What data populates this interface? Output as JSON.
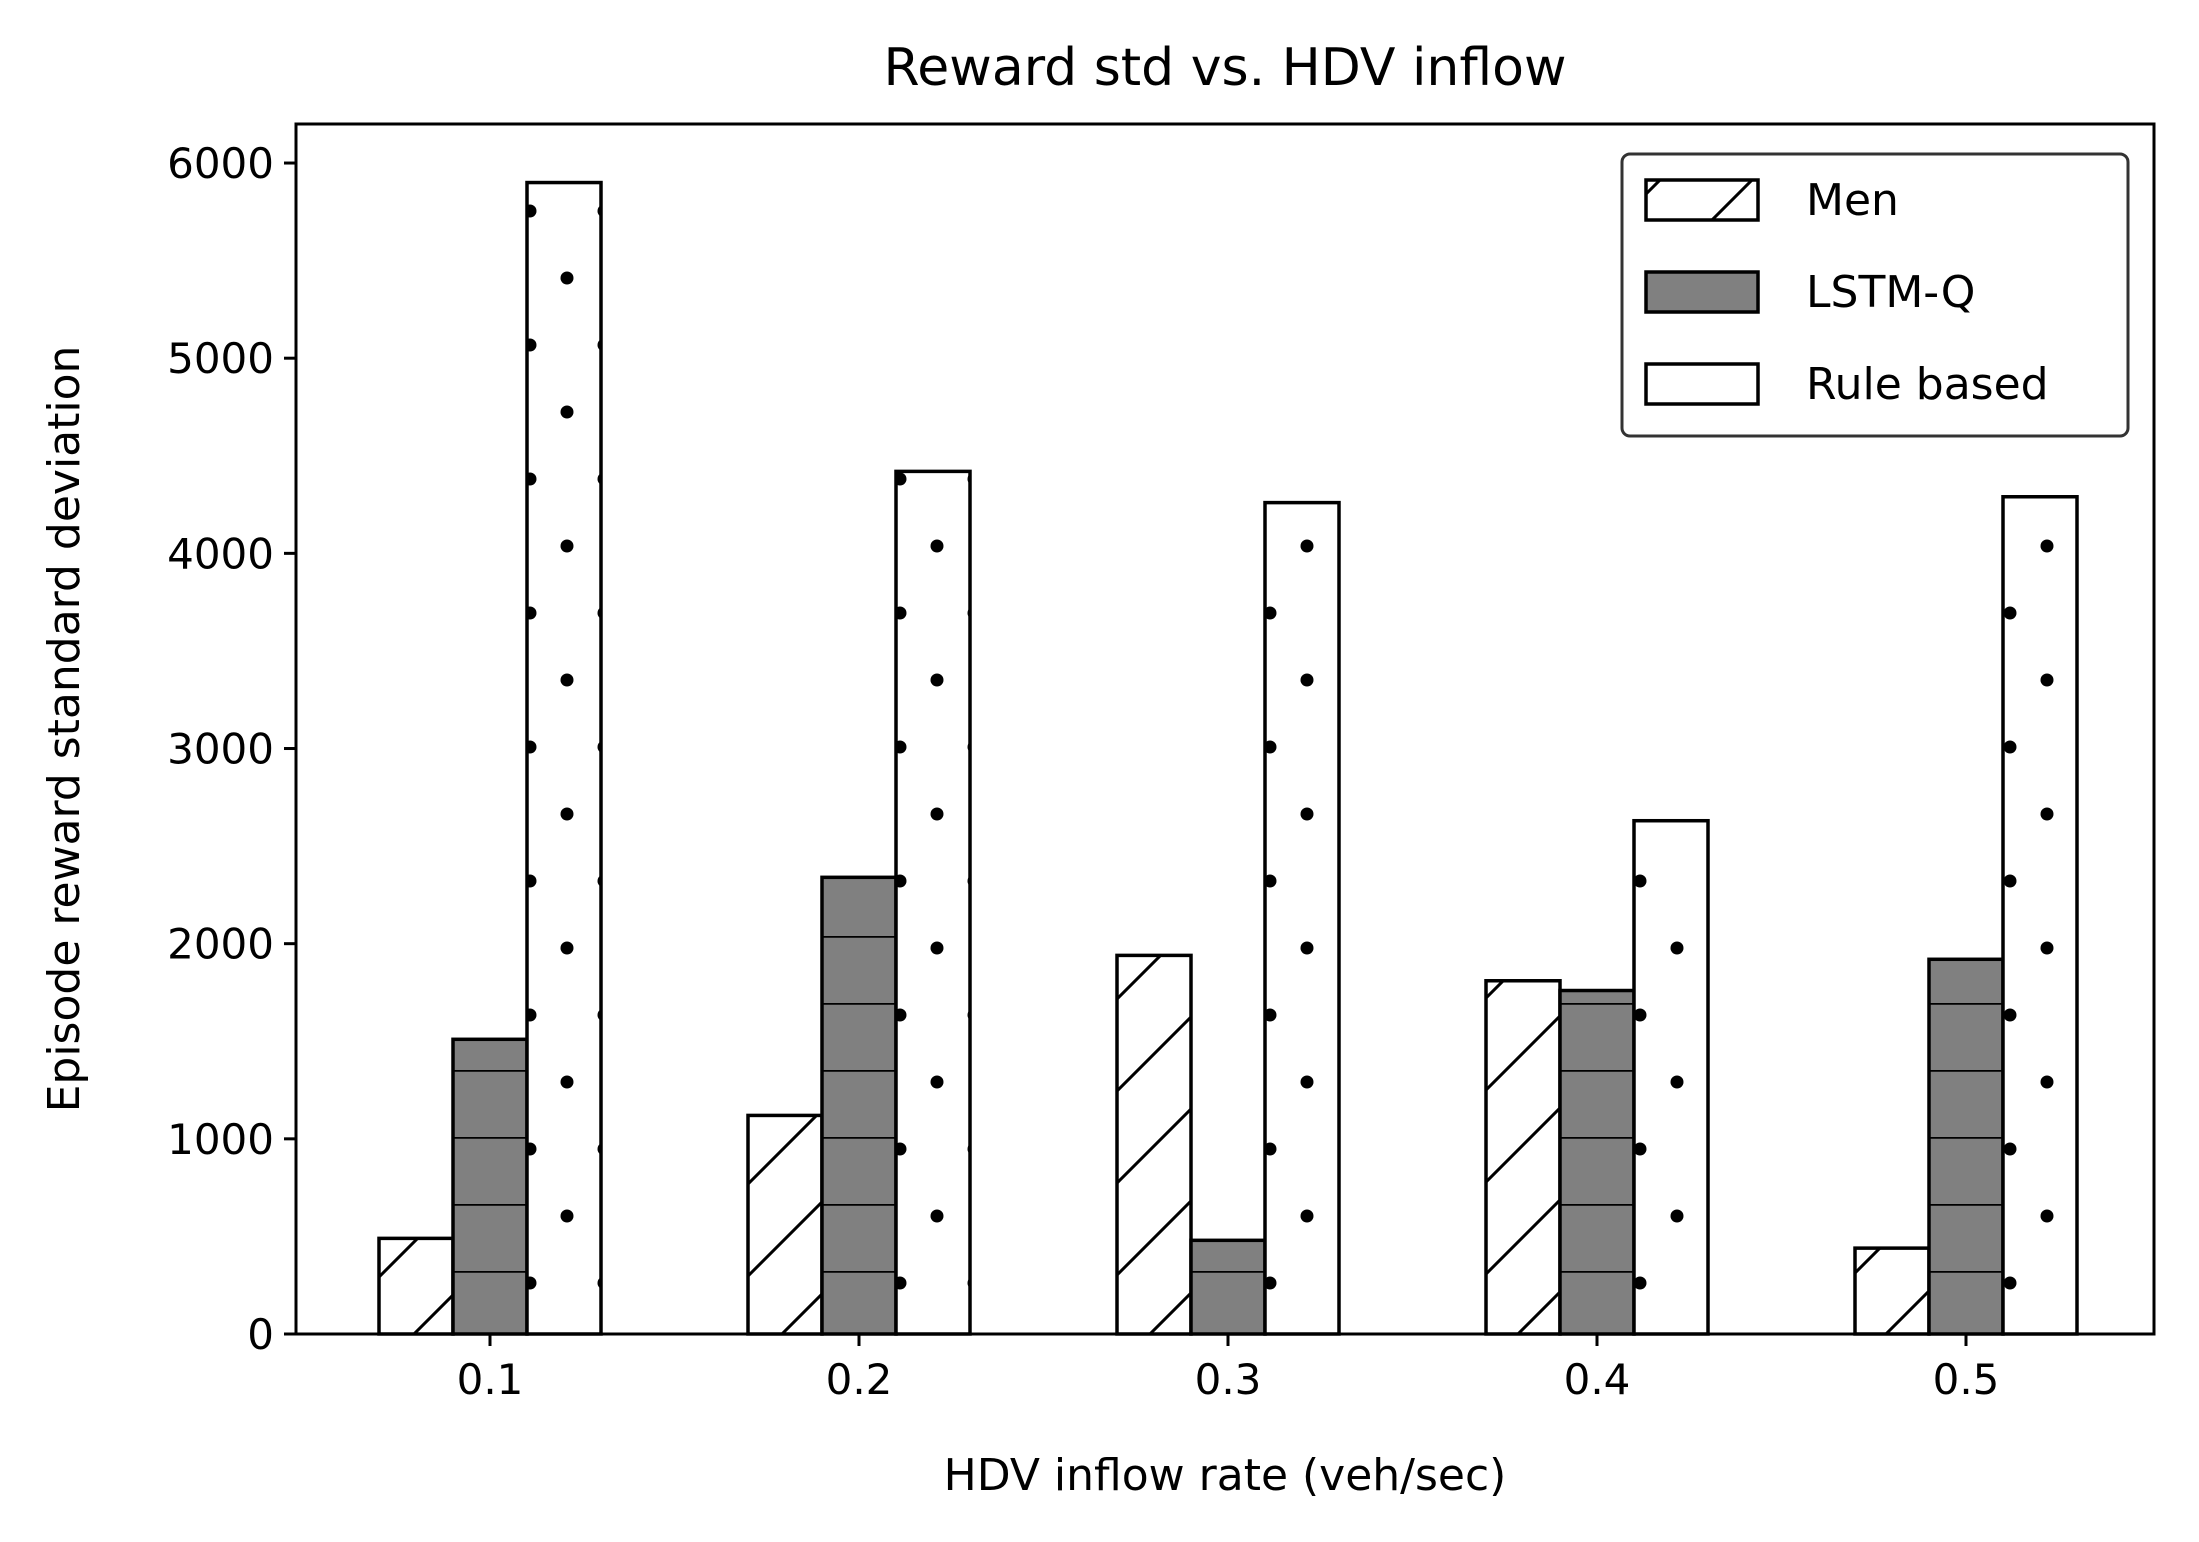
{
  "chart_data": {
    "type": "bar",
    "title": "Reward std vs. HDV inflow",
    "xlabel": "HDV inflow rate (veh/sec)",
    "ylabel": "Episode reward standard deviation",
    "categories": [
      "0.1",
      "0.2",
      "0.3",
      "0.4",
      "0.5"
    ],
    "ylim": [
      0,
      6200
    ],
    "yticks": [
      0,
      1000,
      2000,
      3000,
      4000,
      5000,
      6000
    ],
    "ytick_labels": [
      "0",
      "1000",
      "2000",
      "3000",
      "4000",
      "5000",
      "6000"
    ],
    "legend_position": "top-right",
    "series": [
      {
        "name": "Men",
        "values": [
          490,
          1120,
          1940,
          1810,
          440
        ],
        "hatch": "diagonal",
        "fill": "#ffffff"
      },
      {
        "name": "LSTM-Q",
        "values": [
          1510,
          2340,
          480,
          1760,
          1920
        ],
        "hatch": "horizontal",
        "fill": "#808080"
      },
      {
        "name": "Rule based",
        "values": [
          5900,
          4420,
          4260,
          2630,
          4290
        ],
        "hatch": "dots",
        "fill": "#ffffff"
      }
    ]
  }
}
